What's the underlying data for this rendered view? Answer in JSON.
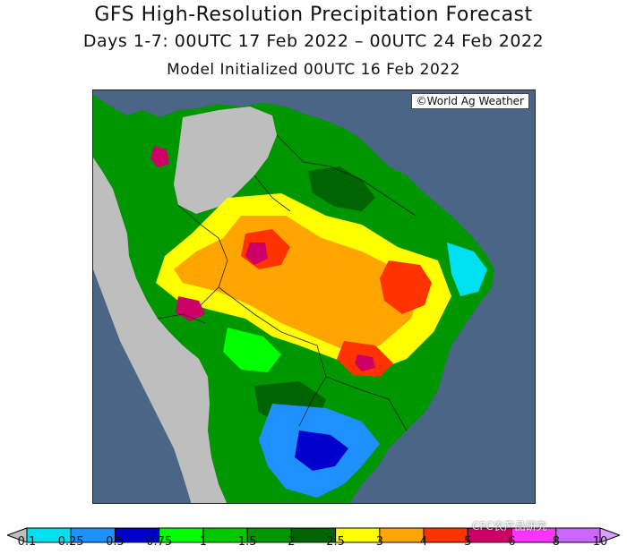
{
  "title": "GFS High-Resolution Precipitation Forecast",
  "subtitle": "Days 1-7: 00UTC 17 Feb 2022 – 00UTC 24 Feb 2022",
  "initialized": "Model Initialized 00UTC 16 Feb 2022",
  "credit": "©World Ag Weather",
  "watermark": "CFC农产品研究",
  "legend": {
    "bins": [
      {
        "label": "0.1",
        "color": "#00e0f0"
      },
      {
        "label": "0.25",
        "color": "#1e90ff"
      },
      {
        "label": "0.5",
        "color": "#0000cd"
      },
      {
        "label": "0.75",
        "color": "#00ff00"
      },
      {
        "label": "1",
        "color": "#00c800"
      },
      {
        "label": "1.5",
        "color": "#009600"
      },
      {
        "label": "2",
        "color": "#006400"
      },
      {
        "label": "2.5",
        "color": "#ffff00"
      },
      {
        "label": "3",
        "color": "#ffa500"
      },
      {
        "label": "4",
        "color": "#ff3300"
      },
      {
        "label": "5",
        "color": "#cc0066"
      },
      {
        "label": "6",
        "color": "#ff33ff"
      },
      {
        "label": "8",
        "color": "#cc66ff"
      },
      {
        "label": "10",
        "color": ""
      }
    ],
    "below_color": "#bebebe",
    "above_color": "#d9a0ff"
  },
  "colors": {
    "ocean": "#4a6585",
    "land_dry": "#bebebe",
    "border": "#222222"
  }
}
